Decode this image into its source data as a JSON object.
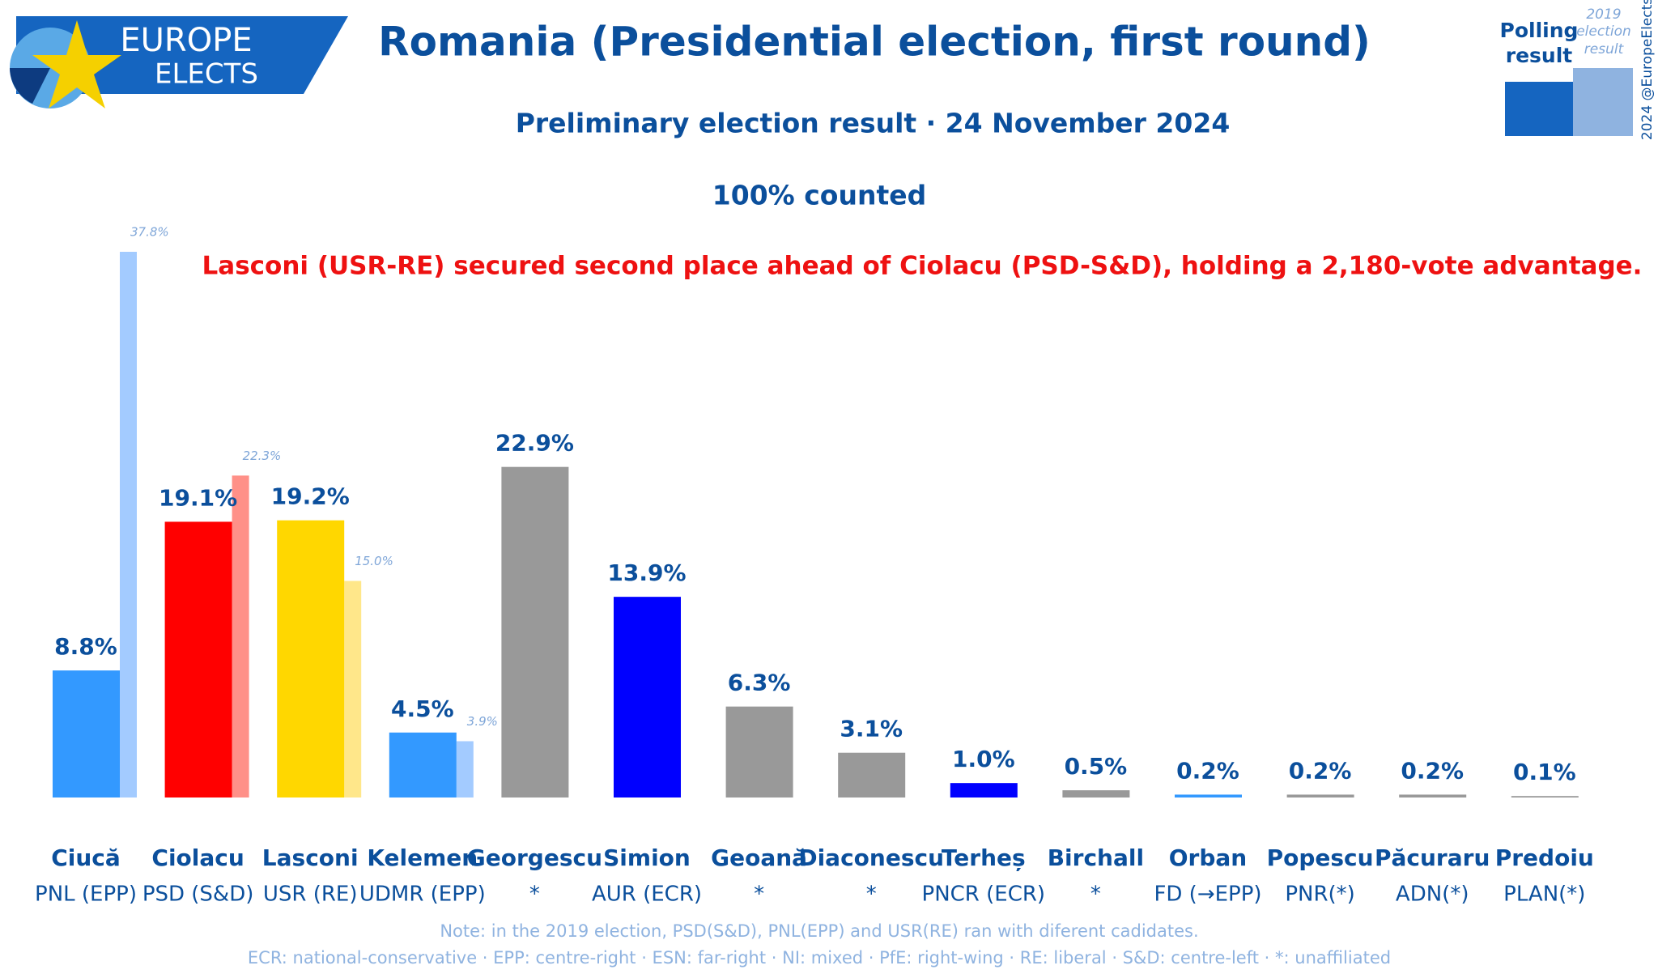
{
  "logo": {
    "line1": "EUROPE",
    "line2": "ELECTS"
  },
  "copyright": "2024 @EuropeElects",
  "chart_data": {
    "type": "bar",
    "title": "Romania (Presidential election, first round)",
    "subtitle": "Preliminary election result · 24 November 2024",
    "status": "100% counted",
    "annotation": "Lasconi (USR-RE) secured second place ahead of Ciolacu (PSD-S&D), holding a 2,180-vote advantage.",
    "categories": [
      "Ciucă",
      "Ciolacu",
      "Lasconi",
      "Kelemen",
      "Georgescu",
      "Simion",
      "Geoană",
      "Diaconescu",
      "Terheș",
      "Birchall",
      "Orban",
      "Popescu",
      "Păcuraru",
      "Predoiu"
    ],
    "parties": [
      "PNL (EPP)",
      "PSD (S&D)",
      "USR (RE)",
      "UDMR (EPP)",
      "*",
      "AUR (ECR)",
      "*",
      "*",
      "PNCR (ECR)",
      "*",
      "FD (→EPP)",
      "PNR(*)",
      "ADN(*)",
      "PLAN(*)"
    ],
    "series": [
      {
        "name": "Polling result",
        "color": "#1565c0",
        "colors": [
          "#3399ff",
          "#ff0000",
          "#ffd700",
          "#3399ff",
          "#999999",
          "#0000ff",
          "#999999",
          "#999999",
          "#0000ff",
          "#999999",
          "#3399ff",
          "#999999",
          "#999999",
          "#999999"
        ],
        "values": [
          8.8,
          19.1,
          19.2,
          4.5,
          22.9,
          13.9,
          6.3,
          3.1,
          1.0,
          0.5,
          0.2,
          0.2,
          0.2,
          0.1
        ],
        "value_labels": [
          "8.8%",
          "19.1%",
          "19.2%",
          "4.5%",
          "22.9%",
          "13.9%",
          "6.3%",
          "3.1%",
          "1.0%",
          "0.5%",
          "0.2%",
          "0.2%",
          "0.2%",
          "0.1%"
        ]
      },
      {
        "name": "2019 election result",
        "color": "#8fb3e0",
        "colors": [
          "#a3cbff",
          "#ff9088",
          "#ffe78a",
          "#a3cbff",
          null,
          null,
          null,
          null,
          null,
          null,
          null,
          null,
          null,
          null
        ],
        "values": [
          37.8,
          22.3,
          15.0,
          3.9,
          null,
          null,
          null,
          null,
          null,
          null,
          null,
          null,
          null,
          null
        ],
        "value_labels": [
          "37.8%",
          "22.3%",
          "15.0%",
          "3.9%",
          null,
          null,
          null,
          null,
          null,
          null,
          null,
          null,
          null,
          null
        ]
      }
    ],
    "notes": [
      "Note: in the 2019 election, PSD(S&D), PNL(EPP) and USR(RE) ran with diferent cadidates.",
      "ECR: national-conservative · EPP: centre-right · ESN: far-right · NI: mixed · PfE: right-wing · RE: liberal · S&D: centre-left · *: unaffiliated"
    ]
  }
}
